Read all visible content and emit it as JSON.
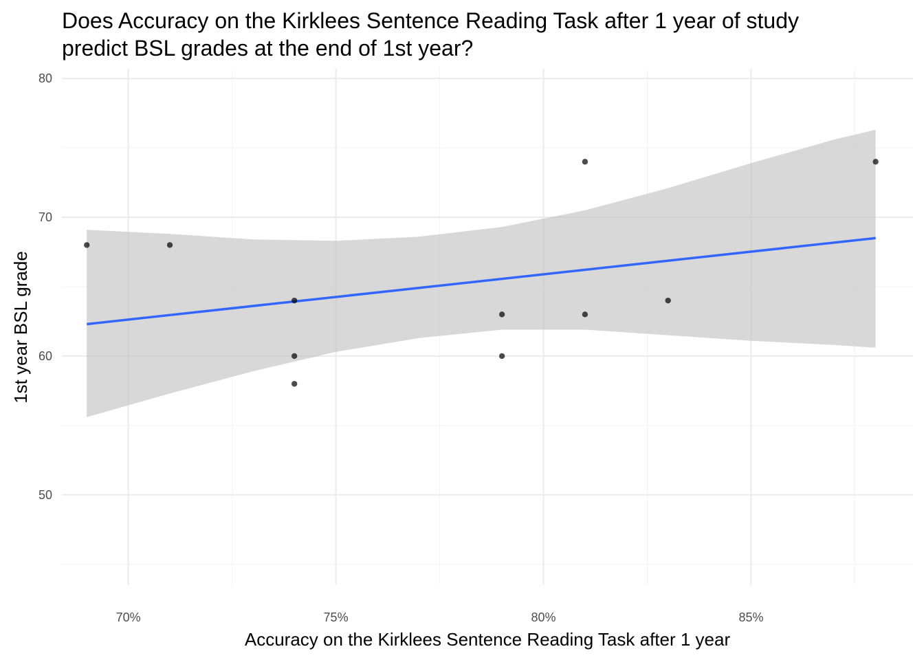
{
  "chart_data": {
    "type": "scatter",
    "title_lines": [
      "Does Accuracy on the Kirklees Sentence Reading Task after 1 year of study",
      "predict BSL grades at the end of 1st year?"
    ],
    "xlabel": "Accuracy on the Kirklees Sentence Reading Task after 1 year",
    "ylabel": "1st year BSL grade",
    "xlim": [
      0.684,
      0.889
    ],
    "ylim": [
      43.5,
      80.7
    ],
    "x_ticks": [
      0.7,
      0.75,
      0.8,
      0.85
    ],
    "x_tick_labels": [
      "70%",
      "75%",
      "80%",
      "85%"
    ],
    "x_minor_ticks": [
      0.725,
      0.775,
      0.825,
      0.875
    ],
    "y_ticks": [
      50,
      60,
      70,
      80
    ],
    "y_tick_labels": [
      "50",
      "60",
      "70",
      "80"
    ],
    "y_minor_ticks": [
      45,
      55,
      65,
      75
    ],
    "grid": true,
    "points": [
      {
        "x": 0.69,
        "y": 68
      },
      {
        "x": 0.71,
        "y": 68
      },
      {
        "x": 0.74,
        "y": 64
      },
      {
        "x": 0.74,
        "y": 60
      },
      {
        "x": 0.74,
        "y": 58
      },
      {
        "x": 0.79,
        "y": 63
      },
      {
        "x": 0.79,
        "y": 60
      },
      {
        "x": 0.81,
        "y": 74
      },
      {
        "x": 0.81,
        "y": 63
      },
      {
        "x": 0.83,
        "y": 64
      },
      {
        "x": 0.88,
        "y": 74
      }
    ],
    "fit_line": {
      "x": [
        0.69,
        0.88
      ],
      "y": [
        62.3,
        68.5
      ]
    },
    "confidence_band": {
      "x": [
        0.69,
        0.71,
        0.73,
        0.75,
        0.77,
        0.79,
        0.81,
        0.83,
        0.85,
        0.87,
        0.88
      ],
      "upper": [
        69.1,
        68.8,
        68.4,
        68.3,
        68.6,
        69.3,
        70.5,
        72.1,
        73.9,
        75.6,
        76.3
      ],
      "lower": [
        55.6,
        57.3,
        58.9,
        60.3,
        61.3,
        61.9,
        61.9,
        61.5,
        61.1,
        60.8,
        60.6
      ]
    },
    "colors": {
      "points": "#000000",
      "fit_line": "#3366FF",
      "confidence_band": "#BEBEBE",
      "grid_major": "#EBEBEB",
      "grid_minor": "#F5F5F5"
    }
  }
}
